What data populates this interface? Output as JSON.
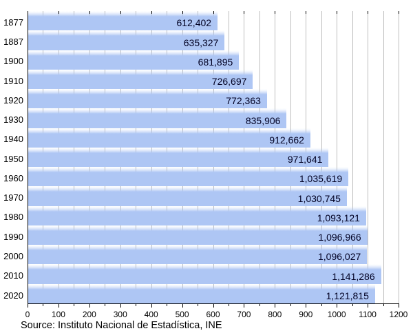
{
  "chart_data": {
    "type": "bar",
    "orientation": "horizontal",
    "categories": [
      "1877",
      "1887",
      "1900",
      "1910",
      "1920",
      "1930",
      "1940",
      "1950",
      "1960",
      "1970",
      "1980",
      "1990",
      "2000",
      "2010",
      "2020"
    ],
    "values": [
      612402,
      635327,
      681895,
      726697,
      772363,
      835906,
      912662,
      971641,
      1035619,
      1030745,
      1093121,
      1096966,
      1096027,
      1141286,
      1121815
    ],
    "value_labels": [
      "612,402",
      "635,327",
      "681,895",
      "726,697",
      "772,363",
      "835,906",
      "912,662",
      "971,641",
      "1,035,619",
      "1,030,745",
      "1,093,121",
      "1,096,966",
      "1,096,027",
      "1,141,286",
      "1,121,815"
    ],
    "title": "",
    "xlabel": "",
    "ylabel": "",
    "xlim": [
      0,
      1200
    ],
    "x_axis_unit_divisor": 1000,
    "x_major_tick_step": 100,
    "x_minor_tick_step": 50,
    "x_tick_labels": [
      "0",
      "100",
      "200",
      "300",
      "400",
      "500",
      "600",
      "700",
      "800",
      "900",
      "1000",
      "1100",
      "1200"
    ],
    "grid": "minor-vertical",
    "legend": "none",
    "source": "Source: Instituto Nacional de Estadística, INE",
    "bar_color": "#aec6f4",
    "grid_color": "#bdbdbd",
    "axis_color": "#000000",
    "value_text_color": "#000022"
  }
}
